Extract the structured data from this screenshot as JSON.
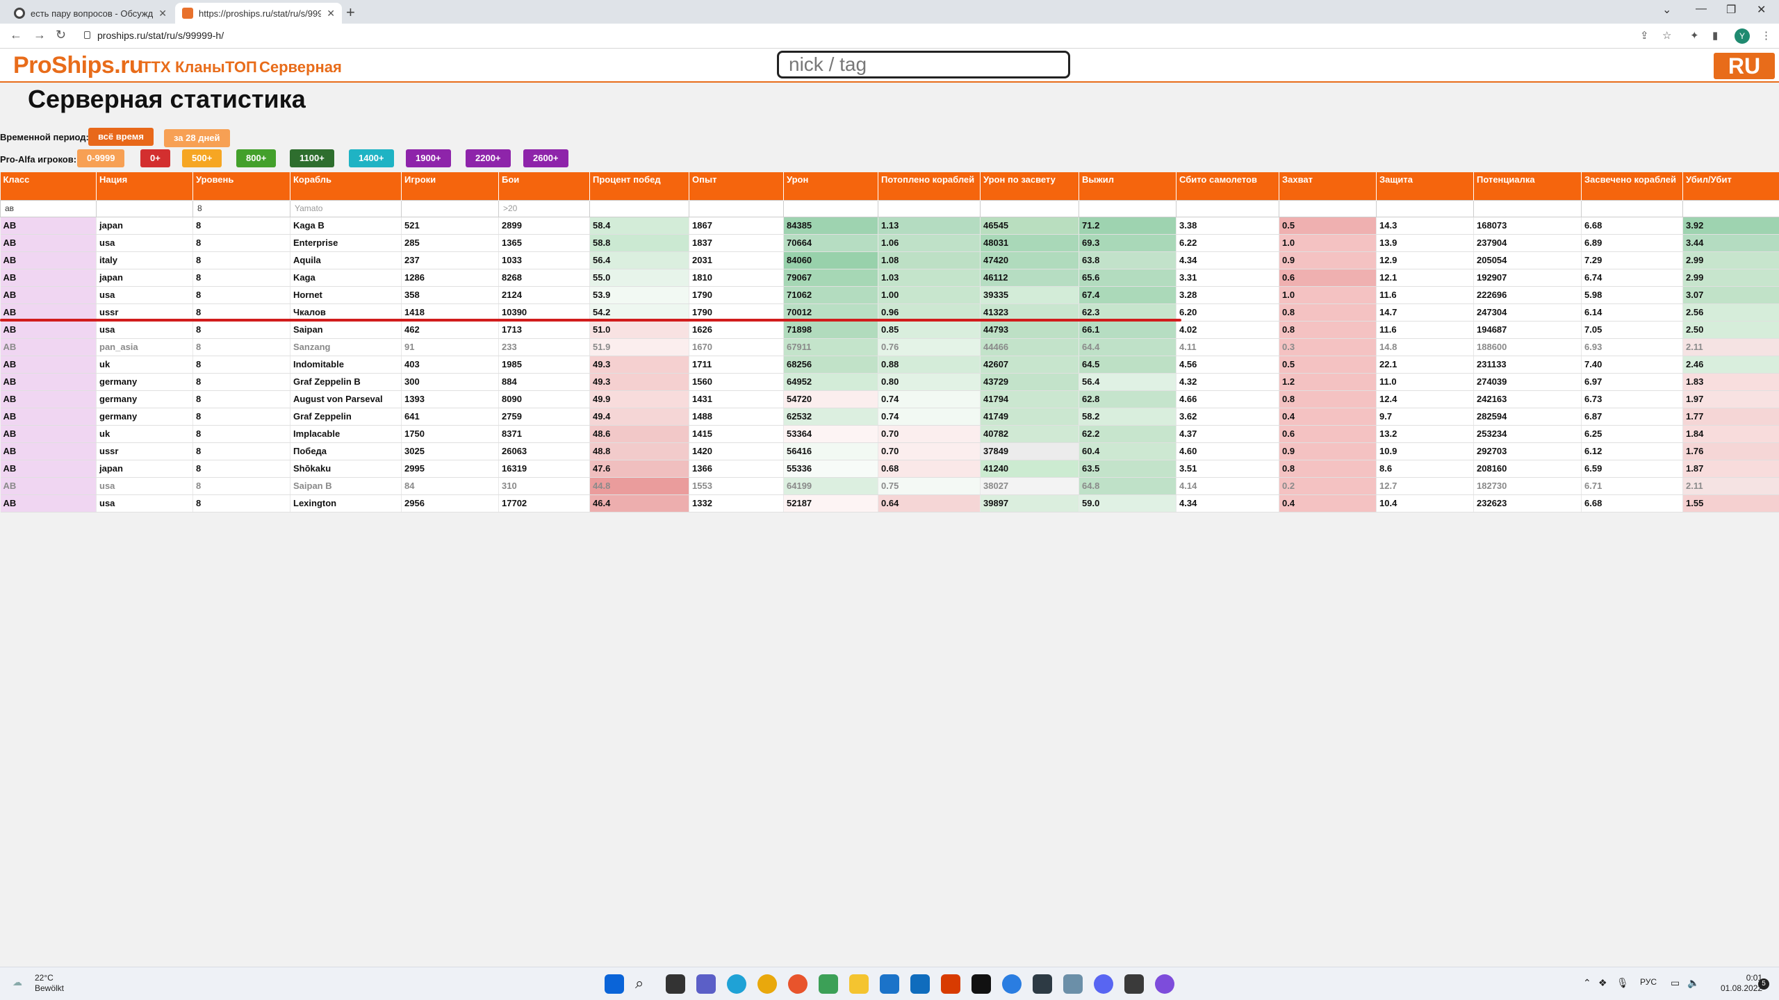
{
  "browser": {
    "tabs": [
      {
        "title": "есть пару вопросов - Обсужде"
      },
      {
        "title": "https://proships.ru/stat/ru/s/999"
      }
    ],
    "url": "proships.ru/stat/ru/s/99999-h/"
  },
  "site": {
    "logo": "ProShips.ru",
    "nav": [
      "ТТХ",
      "Кланы",
      "ТОП",
      "Серверная"
    ],
    "search_placeholder": "nick / tag",
    "lang": "RU"
  },
  "page_title": "Серверная статистика",
  "filters": {
    "period_label": "Временной период:",
    "period_all": "всё время",
    "period_28": "за 28 дней",
    "skill_label": "Pro-Alfa игроков:",
    "skill_buttons": [
      {
        "label": "0-9999",
        "color": "#f7a054"
      },
      {
        "label": "0+",
        "color": "#d32f2f"
      },
      {
        "label": "500+",
        "color": "#f6a623"
      },
      {
        "label": "800+",
        "color": "#43a02b"
      },
      {
        "label": "1100+",
        "color": "#2e6e2e"
      },
      {
        "label": "1400+",
        "color": "#1fb3c4"
      },
      {
        "label": "1900+",
        "color": "#8e24aa"
      },
      {
        "label": "2200+",
        "color": "#8e24aa"
      },
      {
        "label": "2600+",
        "color": "#8e24aa"
      }
    ]
  },
  "table": {
    "headers": [
      "Класс",
      "Нация",
      "Уровень",
      "Корабль",
      "Игроки",
      "Бои",
      "Процент побед",
      "Опыт",
      "Урон",
      "Потоплено кораблей",
      "Урон по засвету",
      "Выжил",
      "Сбито самолетов",
      "Захват",
      "Защита",
      "Потенциалка",
      "Засвечено кораблей",
      "Убил/Убит"
    ],
    "filter_values": [
      "ав",
      "",
      "8",
      "",
      "",
      "",
      "",
      "",
      "",
      "",
      "",
      "",
      "",
      "",
      "",
      "",
      "",
      ""
    ],
    "filter_placeholders": [
      "",
      "",
      "",
      "Yamato",
      "",
      ">20",
      "",
      "",
      "",
      "",
      "",
      "",
      "",
      "",
      "",
      "",
      "",
      ""
    ],
    "rows": [
      {
        "cells": [
          "АВ",
          "japan",
          "8",
          "Kaga B",
          "521",
          "2899",
          "58.4",
          "1867",
          "84385",
          "1.13",
          "46545",
          "71.2",
          "3.38",
          "0.5",
          "14.3",
          "168073",
          "6.68",
          "3.92"
        ],
        "dim": false
      },
      {
        "cells": [
          "АВ",
          "usa",
          "8",
          "Enterprise",
          "285",
          "1365",
          "58.8",
          "1837",
          "70664",
          "1.06",
          "48031",
          "69.3",
          "6.22",
          "1.0",
          "13.9",
          "237904",
          "6.89",
          "3.44"
        ],
        "dim": false
      },
      {
        "cells": [
          "АВ",
          "italy",
          "8",
          "Aquila",
          "237",
          "1033",
          "56.4",
          "2031",
          "84060",
          "1.08",
          "47420",
          "63.8",
          "4.34",
          "0.9",
          "12.9",
          "205054",
          "7.29",
          "2.99"
        ],
        "dim": false
      },
      {
        "cells": [
          "АВ",
          "japan",
          "8",
          "Kaga",
          "1286",
          "8268",
          "55.0",
          "1810",
          "79067",
          "1.03",
          "46112",
          "65.6",
          "3.31",
          "0.6",
          "12.1",
          "192907",
          "6.74",
          "2.99"
        ],
        "dim": false
      },
      {
        "cells": [
          "АВ",
          "usa",
          "8",
          "Hornet",
          "358",
          "2124",
          "53.9",
          "1790",
          "71062",
          "1.00",
          "39335",
          "67.4",
          "3.28",
          "1.0",
          "11.6",
          "222696",
          "5.98",
          "3.07"
        ],
        "dim": false
      },
      {
        "cells": [
          "АВ",
          "ussr",
          "8",
          "Чкалов",
          "1418",
          "10390",
          "54.2",
          "1790",
          "70012",
          "0.96",
          "41323",
          "62.3",
          "6.20",
          "0.8",
          "14.7",
          "247304",
          "6.14",
          "2.56"
        ],
        "dim": false
      },
      {
        "cells": [
          "АВ",
          "usa",
          "8",
          "Saipan",
          "462",
          "1713",
          "51.0",
          "1626",
          "71898",
          "0.85",
          "44793",
          "66.1",
          "4.02",
          "0.8",
          "11.6",
          "194687",
          "7.05",
          "2.50"
        ],
        "dim": false
      },
      {
        "cells": [
          "АВ",
          "pan_asia",
          "8",
          "Sanzang",
          "91",
          "233",
          "51.9",
          "1670",
          "67911",
          "0.76",
          "44466",
          "64.4",
          "4.11",
          "0.3",
          "14.8",
          "188600",
          "6.93",
          "2.11"
        ],
        "dim": true
      },
      {
        "cells": [
          "АВ",
          "uk",
          "8",
          "Indomitable",
          "403",
          "1985",
          "49.3",
          "1711",
          "68256",
          "0.88",
          "42607",
          "64.5",
          "4.56",
          "0.5",
          "22.1",
          "231133",
          "7.40",
          "2.46"
        ],
        "dim": false
      },
      {
        "cells": [
          "АВ",
          "germany",
          "8",
          "Graf Zeppelin B",
          "300",
          "884",
          "49.3",
          "1560",
          "64952",
          "0.80",
          "43729",
          "56.4",
          "4.32",
          "1.2",
          "11.0",
          "274039",
          "6.97",
          "1.83"
        ],
        "dim": false
      },
      {
        "cells": [
          "АВ",
          "germany",
          "8",
          "August von Parseval",
          "1393",
          "8090",
          "49.9",
          "1431",
          "54720",
          "0.74",
          "41794",
          "62.8",
          "4.66",
          "0.8",
          "12.4",
          "242163",
          "6.73",
          "1.97"
        ],
        "dim": false
      },
      {
        "cells": [
          "АВ",
          "germany",
          "8",
          "Graf Zeppelin",
          "641",
          "2759",
          "49.4",
          "1488",
          "62532",
          "0.74",
          "41749",
          "58.2",
          "3.62",
          "0.4",
          "9.7",
          "282594",
          "6.87",
          "1.77"
        ],
        "dim": false
      },
      {
        "cells": [
          "АВ",
          "uk",
          "8",
          "Implacable",
          "1750",
          "8371",
          "48.6",
          "1415",
          "53364",
          "0.70",
          "40782",
          "62.2",
          "4.37",
          "0.6",
          "13.2",
          "253234",
          "6.25",
          "1.84"
        ],
        "dim": false
      },
      {
        "cells": [
          "АВ",
          "ussr",
          "8",
          "Победа",
          "3025",
          "26063",
          "48.8",
          "1420",
          "56416",
          "0.70",
          "37849",
          "60.4",
          "4.60",
          "0.9",
          "10.9",
          "292703",
          "6.12",
          "1.76"
        ],
        "dim": false
      },
      {
        "cells": [
          "АВ",
          "japan",
          "8",
          "Shōkaku",
          "2995",
          "16319",
          "47.6",
          "1366",
          "55336",
          "0.68",
          "41240",
          "63.5",
          "3.51",
          "0.8",
          "8.6",
          "208160",
          "6.59",
          "1.87"
        ],
        "dim": false
      },
      {
        "cells": [
          "АВ",
          "usa",
          "8",
          "Saipan B",
          "84",
          "310",
          "44.8",
          "1553",
          "64199",
          "0.75",
          "38027",
          "64.8",
          "4.14",
          "0.2",
          "12.7",
          "182730",
          "6.71",
          "2.11"
        ],
        "dim": true
      },
      {
        "cells": [
          "АВ",
          "usa",
          "8",
          "Lexington",
          "2956",
          "17702",
          "46.4",
          "1332",
          "52187",
          "0.64",
          "39897",
          "59.0",
          "4.34",
          "0.4",
          "10.4",
          "232623",
          "6.68",
          "1.55"
        ],
        "dim": false
      }
    ],
    "cell_colors": [
      [
        "#f0d6f2",
        "",
        "",
        "",
        "",
        "",
        "#d3ecd8",
        "",
        "#9ed3b0",
        "#b4dcc1",
        "#b9debf",
        "#9ed3b0",
        "",
        "#efb0b0",
        "",
        "",
        "",
        "#9ed3b0"
      ],
      [
        "#f0d6f2",
        "",
        "",
        "",
        "",
        "",
        "#cbe9d2",
        "",
        "#b6ddc2",
        "#bfe1c8",
        "#a9d8b8",
        "#a9d8b8",
        "",
        "#f4c2c2",
        "",
        "",
        "",
        "#b4dcc1"
      ],
      [
        "#f0d6f2",
        "",
        "",
        "",
        "",
        "",
        "#dbefdf",
        "",
        "#98d1ab",
        "#bde0c5",
        "#b0dbbd",
        "#c2e2ca",
        "",
        "#f4c2c2",
        "",
        "",
        "",
        "#c7e5cd"
      ],
      [
        "#f0d6f2",
        "",
        "",
        "",
        "",
        "",
        "#e7f4ea",
        "",
        "#a6d7b5",
        "#c4e4cb",
        "#b6ddc2",
        "#b3dcbf",
        "",
        "#efb0b0",
        "",
        "",
        "",
        "#c7e5cd"
      ],
      [
        "#f0d6f2",
        "",
        "",
        "",
        "",
        "",
        "#f2f9f3",
        "",
        "#b3dcbf",
        "#c8e6ce",
        "#d3ecd8",
        "#abd9b9",
        "",
        "#f4c2c2",
        "",
        "",
        "",
        "#c1e2c8"
      ],
      [
        "#f0d6f2",
        "",
        "",
        "",
        "",
        "",
        "#eef7f0",
        "",
        "#b9dfc4",
        "#cde8d2",
        "#c9e6cf",
        "#c7e5cd",
        "",
        "#f4c2c2",
        "",
        "",
        "",
        "#d6edda"
      ],
      [
        "#f0d6f2",
        "",
        "",
        "",
        "",
        "",
        "#f8e2e2",
        "",
        "#b1dbbd",
        "#d9eedd",
        "#bde0c5",
        "#b6ddc2",
        "",
        "#f4c2c2",
        "",
        "",
        "",
        "#d6edda"
      ],
      [
        "#f0d6f2",
        "",
        "",
        "",
        "",
        "",
        "#fbeeee",
        "",
        "#c4e4cb",
        "#e4f3e7",
        "#c3e3ca",
        "#bfe1c8",
        "",
        "#f4c2c2",
        "",
        "",
        "",
        "#f5e3e3"
      ],
      [
        "#f0d6f2",
        "",
        "",
        "",
        "",
        "",
        "#f5d0d0",
        "",
        "#c1e2c8",
        "#d4ecd9",
        "#c7e5cd",
        "#bde0c5",
        "",
        "#f4c2c2",
        "",
        "",
        "",
        "#d9eedd"
      ],
      [
        "#f0d6f2",
        "",
        "",
        "",
        "",
        "",
        "#f5d0d0",
        "",
        "#d3ecd8",
        "#e2f2e5",
        "#c3e3ca",
        "#e0f1e4",
        "",
        "#f4c2c2",
        "",
        "",
        "",
        "#f8dede"
      ],
      [
        "#f0d6f2",
        "",
        "",
        "",
        "",
        "",
        "#f8dcdc",
        "",
        "#fbeeee",
        "#f2f9f3",
        "#cbe7d0",
        "#c5e4cc",
        "",
        "#f4c2c2",
        "",
        "",
        "",
        "#f8e2e2"
      ],
      [
        "#f0d6f2",
        "",
        "",
        "",
        "",
        "",
        "#f5d6d6",
        "",
        "#dcefe0",
        "#f2f9f3",
        "#cbe7d0",
        "#d9eedd",
        "",
        "#f4c2c2",
        "",
        "",
        "",
        "#f5d6d6"
      ],
      [
        "#f0d6f2",
        "",
        "",
        "",
        "",
        "",
        "#f2c8c8",
        "",
        "#fdf4f4",
        "#fbeeee",
        "#d0e9d4",
        "#c7e5cd",
        "",
        "#f4c2c2",
        "",
        "",
        "",
        "#f8dcdc"
      ],
      [
        "#f0d6f2",
        "",
        "",
        "",
        "",
        "",
        "#f2cbcb",
        "",
        "#f2f9f3",
        "#fbeeee",
        "#ececec",
        "#cde8d2",
        "",
        "#f4c2c2",
        "",
        "",
        "",
        "#f5d6d6"
      ],
      [
        "#f0d6f2",
        "",
        "",
        "",
        "",
        "",
        "#f0bfbf",
        "",
        "#f7fbf8",
        "#fae8e8",
        "#ccebd1",
        "#c3e3ca",
        "",
        "#f4c2c2",
        "",
        "",
        "",
        "#f8dcdc"
      ],
      [
        "#f0d6f2",
        "",
        "",
        "",
        "",
        "",
        "#ea9c9c",
        "",
        "#dcefe0",
        "#f4f9f5",
        "#f3f3f3",
        "#bfe1c8",
        "",
        "#f4c2c2",
        "",
        "",
        "",
        "#f5e3e3"
      ],
      [
        "#f0d6f2",
        "",
        "",
        "",
        "",
        "",
        "#edaeae",
        "",
        "#fdf4f4",
        "#f5d6d6",
        "#dbeede",
        "#e0f1e4",
        "",
        "#f4c2c2",
        "",
        "",
        "",
        "#f5d0d0"
      ]
    ]
  },
  "taskbar": {
    "temp": "22°C",
    "weather": "Bewölkt",
    "lang": "РУС",
    "time": "0:01",
    "date": "01.08.2022"
  }
}
